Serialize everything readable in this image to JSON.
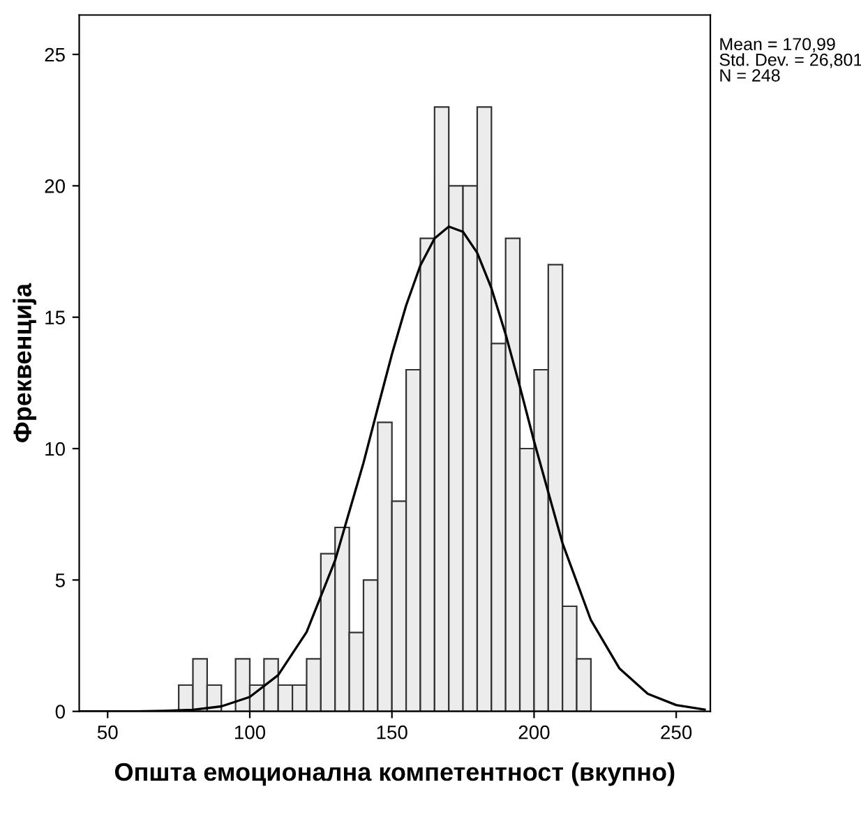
{
  "chart_data": {
    "type": "histogram",
    "xlabel": "Општа емоционална компетентност (вкупно)",
    "ylabel": "Фреквенција",
    "bins": [
      75,
      80,
      85,
      90,
      95,
      100,
      105,
      110,
      115,
      120,
      125,
      130,
      135,
      140,
      145,
      150,
      155,
      160,
      165,
      170,
      175,
      180,
      185,
      190,
      195,
      200,
      205,
      210,
      215,
      220
    ],
    "values": [
      1,
      2,
      1,
      0,
      2,
      1,
      2,
      1,
      1,
      2,
      6,
      7,
      3,
      5,
      11,
      8,
      13,
      18,
      23,
      20,
      20,
      23,
      14,
      18,
      10,
      13,
      17,
      4,
      2
    ],
    "color": "#ececec",
    "series": [
      {
        "type": "line",
        "color": "#000000",
        "x": [
          40,
          50,
          60,
          70,
          80,
          90,
          100,
          110,
          120,
          130,
          140,
          145,
          150,
          155,
          160,
          165,
          170,
          175,
          180,
          185,
          190,
          195,
          200,
          210,
          220,
          230,
          240,
          250,
          260
        ],
        "values": [
          0.0,
          0.0,
          0.0,
          0.02,
          0.06,
          0.19,
          0.55,
          1.38,
          3.02,
          5.74,
          9.46,
          11.54,
          13.59,
          15.45,
          16.97,
          18.0,
          18.45,
          18.25,
          17.45,
          16.1,
          14.35,
          12.36,
          10.28,
          6.4,
          3.47,
          1.64,
          0.67,
          0.24,
          0.07
        ]
      }
    ],
    "xlim": [
      40,
      262
    ],
    "xticks": [
      50,
      100,
      150,
      200,
      250
    ],
    "ylim": [
      0,
      26.5
    ],
    "yticks": [
      0,
      5,
      10,
      15,
      20,
      25
    ],
    "grid": false,
    "annotations": [
      "Mean = 170,99\nStd. Dev. = 26,801\nN = 248"
    ]
  }
}
